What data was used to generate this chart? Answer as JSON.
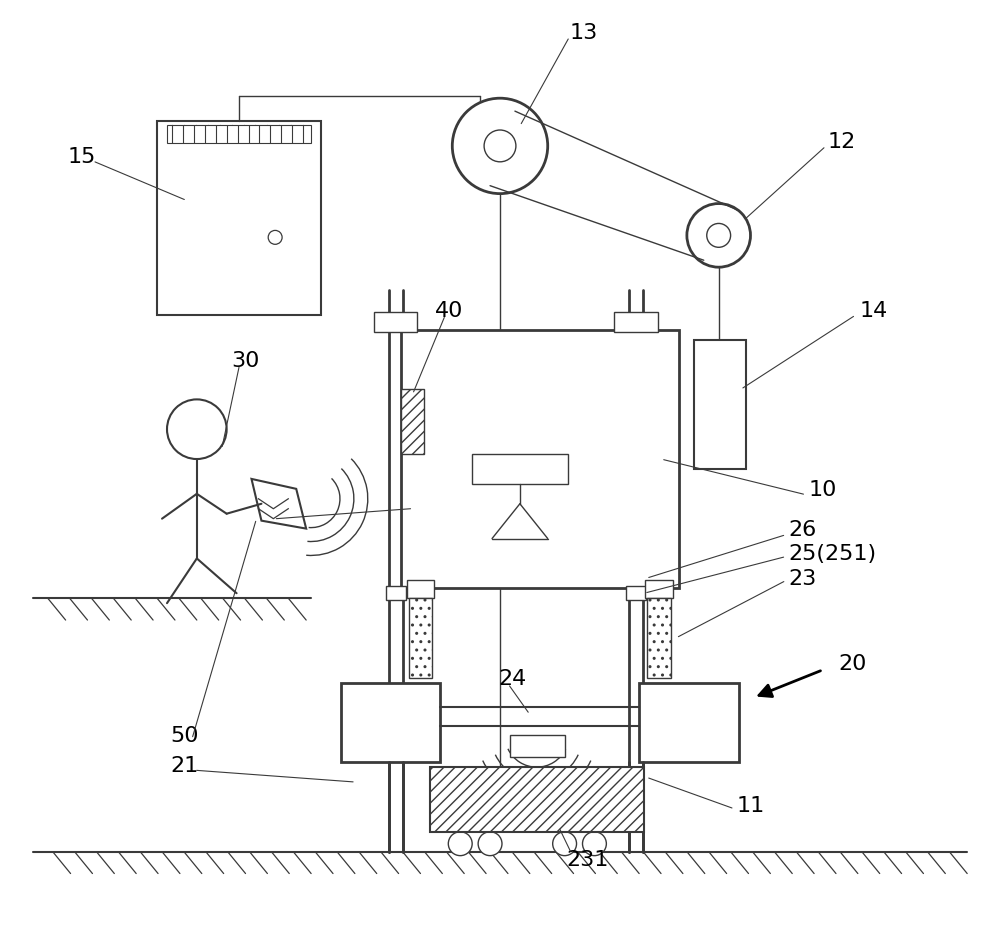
{
  "bg_color": "#ffffff",
  "lc": "#3a3a3a",
  "fig_width": 10.0,
  "fig_height": 9.29,
  "dpi": 100,
  "xlim": [
    0,
    1000
  ],
  "ylim": [
    0,
    929
  ]
}
